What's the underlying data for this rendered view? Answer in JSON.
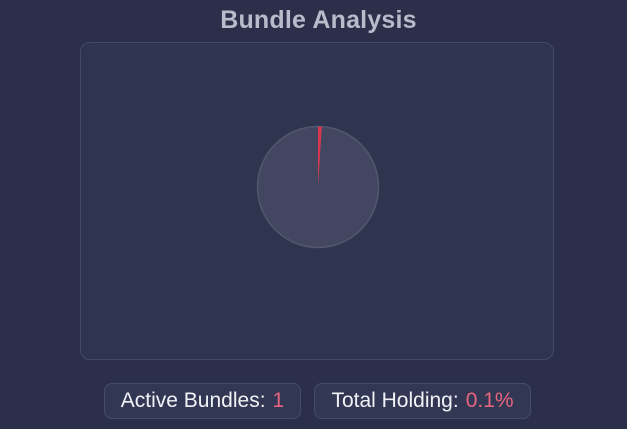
{
  "header": {
    "title": "Bundle Analysis"
  },
  "pie": {
    "slice_fraction": 0.01,
    "slice_color": "#d8384f",
    "rest_color": "#434660",
    "border_color": "#53576e"
  },
  "stats": {
    "active_bundles_label": "Active Bundles:",
    "active_bundles_value": "1",
    "total_holding_label": "Total Holding:",
    "total_holding_value": "0.1%"
  }
}
